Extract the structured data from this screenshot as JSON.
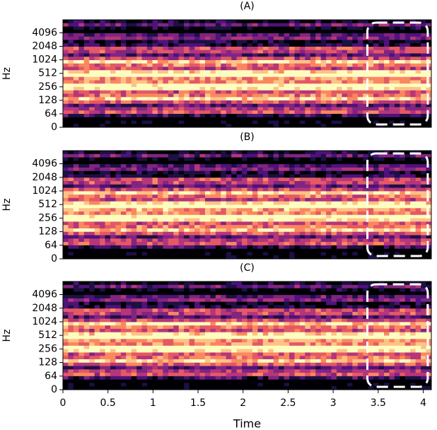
{
  "chart_data": [
    {
      "type": "spectrogram",
      "title": "(A)",
      "ylabel": "Hz",
      "yscale": "symlog",
      "linthresh": 64,
      "ylim": [
        0,
        8000
      ],
      "yticks": [
        0,
        64,
        128,
        256,
        512,
        1024,
        2048,
        4096
      ],
      "xlim": [
        0,
        4.09
      ],
      "highlight": {
        "x": [
          3.38,
          4.05
        ],
        "color": "#ffffff"
      }
    },
    {
      "type": "spectrogram",
      "title": "(B)",
      "ylabel": "Hz",
      "yscale": "symlog",
      "linthresh": 64,
      "ylim": [
        0,
        8000
      ],
      "yticks": [
        0,
        64,
        128,
        256,
        512,
        1024,
        2048,
        4096
      ],
      "xlim": [
        0,
        4.09
      ],
      "highlight": {
        "x": [
          3.38,
          4.05
        ],
        "color": "#ffffff"
      }
    },
    {
      "type": "spectrogram",
      "title": "(C)",
      "ylabel": "Hz",
      "yscale": "symlog",
      "linthresh": 64,
      "ylim": [
        0,
        8000
      ],
      "yticks": [
        0,
        64,
        128,
        256,
        512,
        1024,
        2048,
        4096
      ],
      "xlim": [
        0,
        4.09
      ],
      "xlabel": "Time",
      "xticks": [
        0,
        0.5,
        1,
        1.5,
        2,
        2.5,
        3,
        3.5,
        4
      ],
      "highlight": {
        "x": [
          3.38,
          4.05
        ],
        "color": "#ffffff"
      }
    }
  ]
}
